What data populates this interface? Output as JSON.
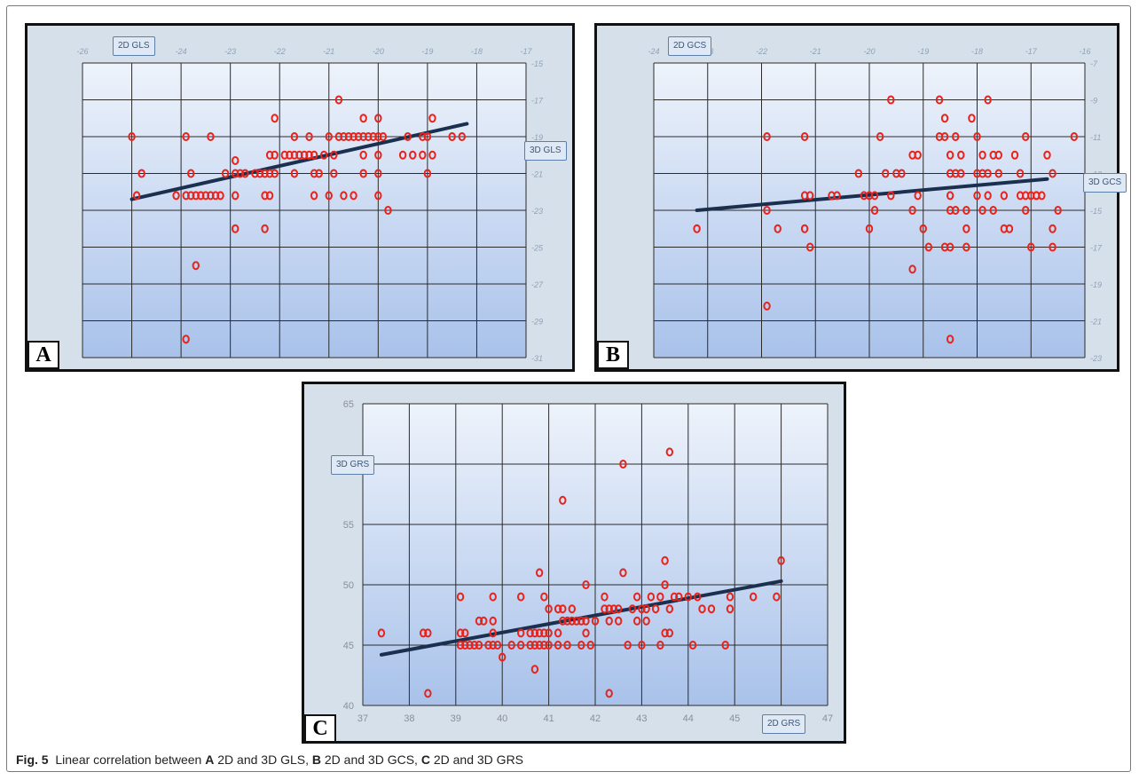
{
  "caption": {
    "figure_label": "Fig. 5",
    "lead": "Linear correlation between",
    "a_letter": "A",
    "a_text": "2D and 3D GLS,",
    "b_letter": "B",
    "b_text": "2D and 3D GCS,",
    "c_letter": "C",
    "c_text": "2D and 3D GRS"
  },
  "chart_data": [
    {
      "panel": "A",
      "type": "scatter",
      "x_axis_badge": "2D GLS",
      "y_axis_badge": "3D GLS",
      "xlim": [
        -26,
        -17
      ],
      "ylim": [
        -31,
        -15
      ],
      "x_ticks": [
        "-26",
        "-25",
        "-24",
        "-23",
        "-22",
        "-21",
        "-20",
        "-19",
        "-18",
        "-17"
      ],
      "y_ticks": [
        "-15",
        "-17",
        "-19",
        "-21",
        "-23",
        "-25",
        "-27",
        "-29",
        "-31"
      ],
      "y_tick_values": [
        -15,
        -17,
        -19,
        -21,
        -23,
        -25,
        -27,
        -29,
        -31
      ],
      "grid": true,
      "marker_color": "#e8231b",
      "trend_line": {
        "x": [
          -25,
          -18.2
        ],
        "y": [
          -22.4,
          -18.3
        ]
      },
      "points": [
        [
          -25,
          -19
        ],
        [
          -24.9,
          -22.2
        ],
        [
          -24.8,
          -21
        ],
        [
          -24.1,
          -22.2
        ],
        [
          -23.9,
          -19
        ],
        [
          -23.8,
          -21
        ],
        [
          -23.9,
          -22.2
        ],
        [
          -23.8,
          -22.2
        ],
        [
          -23.7,
          -22.2
        ],
        [
          -23.6,
          -22.2
        ],
        [
          -23.5,
          -22.2
        ],
        [
          -23.4,
          -22.2
        ],
        [
          -23.3,
          -22.2
        ],
        [
          -23.2,
          -22.2
        ],
        [
          -23.4,
          -19
        ],
        [
          -23.7,
          -26
        ],
        [
          -23.9,
          -30
        ],
        [
          -23.1,
          -21
        ],
        [
          -22.9,
          -22.2
        ],
        [
          -22.9,
          -21
        ],
        [
          -22.9,
          -20.3
        ],
        [
          -22.8,
          -21
        ],
        [
          -22.7,
          -21
        ],
        [
          -22.9,
          -24
        ],
        [
          -22.3,
          -24
        ],
        [
          -22.5,
          -21
        ],
        [
          -22.4,
          -21
        ],
        [
          -22.3,
          -21
        ],
        [
          -22.3,
          -22.2
        ],
        [
          -22.2,
          -22.2
        ],
        [
          -22.2,
          -21
        ],
        [
          -22.2,
          -20
        ],
        [
          -22.1,
          -20
        ],
        [
          -22.1,
          -18
        ],
        [
          -22.1,
          -21
        ],
        [
          -21.9,
          -20
        ],
        [
          -21.8,
          -20
        ],
        [
          -21.7,
          -20
        ],
        [
          -21.7,
          -19
        ],
        [
          -21.6,
          -20
        ],
        [
          -21.7,
          -21
        ],
        [
          -21.5,
          -20
        ],
        [
          -21.4,
          -20
        ],
        [
          -21.3,
          -20
        ],
        [
          -21.4,
          -19
        ],
        [
          -21.3,
          -21
        ],
        [
          -21.3,
          -22.2
        ],
        [
          -21.2,
          -21
        ],
        [
          -21.1,
          -20
        ],
        [
          -21,
          -19
        ],
        [
          -21,
          -22.2
        ],
        [
          -20.9,
          -20
        ],
        [
          -20.9,
          -21
        ],
        [
          -20.8,
          -17
        ],
        [
          -20.8,
          -19
        ],
        [
          -20.7,
          -19
        ],
        [
          -20.7,
          -22.2
        ],
        [
          -20.6,
          -19
        ],
        [
          -20.5,
          -19
        ],
        [
          -20.5,
          -22.2
        ],
        [
          -20.4,
          -19
        ],
        [
          -20.3,
          -19
        ],
        [
          -20.3,
          -18
        ],
        [
          -20.3,
          -20
        ],
        [
          -20.3,
          -21
        ],
        [
          -20.2,
          -19
        ],
        [
          -20.1,
          -19
        ],
        [
          -20,
          -19
        ],
        [
          -20,
          -18
        ],
        [
          -20,
          -20
        ],
        [
          -20,
          -21
        ],
        [
          -20,
          -22.2
        ],
        [
          -19.9,
          -19
        ],
        [
          -19.8,
          -23
        ],
        [
          -19.5,
          -20
        ],
        [
          -19.4,
          -19
        ],
        [
          -19.3,
          -20
        ],
        [
          -19.1,
          -19
        ],
        [
          -19.1,
          -20
        ],
        [
          -19,
          -21
        ],
        [
          -19,
          -19
        ],
        [
          -18.9,
          -18
        ],
        [
          -18.9,
          -20
        ],
        [
          -18.5,
          -19
        ],
        [
          -18.3,
          -19
        ]
      ]
    },
    {
      "panel": "B",
      "type": "scatter",
      "x_axis_badge": "2D GCS",
      "y_axis_badge": "3D GCS",
      "xlim": [
        -24,
        -16
      ],
      "ylim": [
        -23,
        -7
      ],
      "x_ticks": [
        "-24",
        "-23",
        "-22",
        "-21",
        "-20",
        "-19",
        "-18",
        "-17",
        "-16"
      ],
      "y_ticks": [
        "-7",
        "-9",
        "-11",
        "-13",
        "-15",
        "-17",
        "-19",
        "-21",
        "-23"
      ],
      "y_tick_values": [
        -7,
        -9,
        -11,
        -13,
        -15,
        -17,
        -19,
        -21,
        -23
      ],
      "grid": true,
      "marker_color": "#e8231b",
      "trend_line": {
        "x": [
          -23.2,
          -16.7
        ],
        "y": [
          -15.0,
          -13.3
        ]
      },
      "points": [
        [
          -23.2,
          -16
        ],
        [
          -21.9,
          -11
        ],
        [
          -21.9,
          -15
        ],
        [
          -21.7,
          -16
        ],
        [
          -21.2,
          -11
        ],
        [
          -21.2,
          -14.2
        ],
        [
          -21.1,
          -14.2
        ],
        [
          -21.2,
          -16
        ],
        [
          -21.1,
          -17
        ],
        [
          -21.9,
          -20.2
        ],
        [
          -20.7,
          -14.2
        ],
        [
          -20.6,
          -14.2
        ],
        [
          -20.2,
          -13
        ],
        [
          -20.1,
          -14.2
        ],
        [
          -20,
          -14.2
        ],
        [
          -19.9,
          -14.2
        ],
        [
          -19.9,
          -15
        ],
        [
          -19.8,
          -11
        ],
        [
          -19.7,
          -13
        ],
        [
          -19.6,
          -14.2
        ],
        [
          -20,
          -16
        ],
        [
          -19.6,
          -9
        ],
        [
          -19.5,
          -13
        ],
        [
          -19.4,
          -13
        ],
        [
          -19.2,
          -12
        ],
        [
          -19.1,
          -12
        ],
        [
          -19.2,
          -15
        ],
        [
          -19.1,
          -14.2
        ],
        [
          -19,
          -16
        ],
        [
          -18.9,
          -17
        ],
        [
          -19.2,
          -18.2
        ],
        [
          -18.7,
          -11
        ],
        [
          -18.6,
          -11
        ],
        [
          -18.5,
          -15
        ],
        [
          -18.5,
          -14.2
        ],
        [
          -18.5,
          -13
        ],
        [
          -18.4,
          -15
        ],
        [
          -18.4,
          -13
        ],
        [
          -18.3,
          -13
        ],
        [
          -18.2,
          -15
        ],
        [
          -18.2,
          -17
        ],
        [
          -18.1,
          -10
        ],
        [
          -18,
          -11
        ],
        [
          -18,
          -13
        ],
        [
          -17.9,
          -12
        ],
        [
          -17.9,
          -13
        ],
        [
          -17.8,
          -13
        ],
        [
          -17.8,
          -14.2
        ],
        [
          -17.7,
          -15
        ],
        [
          -17.6,
          -13
        ],
        [
          -17.6,
          -12
        ],
        [
          -17.5,
          -14.2
        ],
        [
          -17.4,
          -16
        ],
        [
          -17.2,
          -13
        ],
        [
          -17.1,
          -11
        ],
        [
          -17.1,
          -15
        ],
        [
          -17,
          -17
        ],
        [
          -16.9,
          -14.2
        ],
        [
          -18.7,
          -9
        ],
        [
          -18.6,
          -10
        ],
        [
          -18.5,
          -12
        ],
        [
          -18.6,
          -17
        ],
        [
          -18.5,
          -17
        ],
        [
          -18.4,
          -11
        ],
        [
          -18.3,
          -12
        ],
        [
          -18.2,
          -16
        ],
        [
          -18,
          -14.2
        ],
        [
          -17.9,
          -15
        ],
        [
          -17.8,
          -9
        ],
        [
          -17.7,
          -12
        ],
        [
          -17.5,
          -16
        ],
        [
          -17.3,
          -12
        ],
        [
          -17.2,
          -14.2
        ],
        [
          -17.1,
          -14.2
        ],
        [
          -17,
          -14.2
        ],
        [
          -16.9,
          -14.2
        ],
        [
          -16.8,
          -14.2
        ],
        [
          -16.7,
          -12
        ],
        [
          -16.6,
          -13
        ],
        [
          -16.6,
          -16
        ],
        [
          -16.6,
          -17
        ],
        [
          -16.5,
          -15
        ],
        [
          -16.2,
          -11
        ],
        [
          -18.5,
          -22
        ]
      ]
    },
    {
      "panel": "C",
      "type": "scatter",
      "x_axis_badge": "2D GRS",
      "y_axis_badge": "3D GRS",
      "xlim": [
        37,
        47
      ],
      "ylim": [
        40,
        65
      ],
      "x_ticks": [
        "37",
        "38",
        "39",
        "40",
        "41",
        "42",
        "43",
        "44",
        "45",
        "46",
        "47"
      ],
      "y_ticks": [
        "65",
        "55",
        "50",
        "45",
        "40"
      ],
      "y_tick_values": [
        65,
        55,
        50,
        45,
        40
      ],
      "y_gridlines": [
        40,
        45,
        50,
        55,
        60,
        65
      ],
      "x_gridlines": [
        37,
        38,
        39,
        40,
        41,
        42,
        43,
        44,
        45,
        46,
        47
      ],
      "grid": true,
      "marker_color": "#e8231b",
      "trend_line": {
        "x": [
          37.4,
          46.0
        ],
        "y": [
          44.2,
          50.3
        ]
      },
      "points": [
        [
          37.4,
          46
        ],
        [
          38.3,
          46
        ],
        [
          38.4,
          46
        ],
        [
          38.4,
          41
        ],
        [
          39.1,
          49
        ],
        [
          39.1,
          46
        ],
        [
          39.1,
          45
        ],
        [
          39.2,
          45
        ],
        [
          39.3,
          45
        ],
        [
          39.4,
          45
        ],
        [
          39.2,
          46
        ],
        [
          39.5,
          45
        ],
        [
          39.5,
          47
        ],
        [
          39.6,
          47
        ],
        [
          39.7,
          45
        ],
        [
          39.8,
          45
        ],
        [
          39.8,
          46
        ],
        [
          39.8,
          47
        ],
        [
          39.8,
          49
        ],
        [
          39.9,
          45
        ],
        [
          40,
          44
        ],
        [
          40.2,
          45
        ],
        [
          40.4,
          45
        ],
        [
          40.4,
          46
        ],
        [
          40.4,
          49
        ],
        [
          40.6,
          45
        ],
        [
          40.6,
          46
        ],
        [
          40.7,
          45
        ],
        [
          40.7,
          46
        ],
        [
          40.7,
          43
        ],
        [
          40.8,
          45
        ],
        [
          40.8,
          46
        ],
        [
          40.8,
          51
        ],
        [
          40.9,
          45
        ],
        [
          40.9,
          46
        ],
        [
          40.9,
          49
        ],
        [
          41,
          45
        ],
        [
          41,
          46
        ],
        [
          41,
          48
        ],
        [
          41.2,
          45
        ],
        [
          41.2,
          46
        ],
        [
          41.2,
          48
        ],
        [
          41.3,
          47
        ],
        [
          41.3,
          57
        ],
        [
          41.3,
          48
        ],
        [
          41.4,
          47
        ],
        [
          41.4,
          45
        ],
        [
          41.5,
          47
        ],
        [
          41.5,
          48
        ],
        [
          41.6,
          47
        ],
        [
          41.7,
          45
        ],
        [
          41.7,
          47
        ],
        [
          41.8,
          47
        ],
        [
          41.8,
          50
        ],
        [
          41.8,
          46
        ],
        [
          41.9,
          45
        ],
        [
          42,
          47
        ],
        [
          42.2,
          49
        ],
        [
          42.2,
          48
        ],
        [
          42.3,
          48
        ],
        [
          42.3,
          47
        ],
        [
          42.3,
          41
        ],
        [
          42.4,
          48
        ],
        [
          42.5,
          47
        ],
        [
          42.5,
          48
        ],
        [
          42.6,
          60
        ],
        [
          42.6,
          51
        ],
        [
          42.7,
          45
        ],
        [
          42.8,
          48
        ],
        [
          42.9,
          47
        ],
        [
          42.9,
          49
        ],
        [
          43,
          45
        ],
        [
          43,
          48
        ],
        [
          43.1,
          47
        ],
        [
          43.1,
          48
        ],
        [
          43.2,
          49
        ],
        [
          43.3,
          48
        ],
        [
          43.4,
          45
        ],
        [
          43.4,
          49
        ],
        [
          43.5,
          50
        ],
        [
          43.5,
          52
        ],
        [
          43.5,
          46
        ],
        [
          43.6,
          61
        ],
        [
          43.6,
          48
        ],
        [
          43.6,
          46
        ],
        [
          43.7,
          49
        ],
        [
          43.8,
          49
        ],
        [
          44,
          49
        ],
        [
          44.1,
          45
        ],
        [
          44.2,
          49
        ],
        [
          44.3,
          48
        ],
        [
          44.5,
          48
        ],
        [
          44.8,
          45
        ],
        [
          44.9,
          48
        ],
        [
          44.9,
          49
        ],
        [
          45.4,
          49
        ],
        [
          45.9,
          49
        ],
        [
          46.0,
          52
        ]
      ]
    }
  ]
}
